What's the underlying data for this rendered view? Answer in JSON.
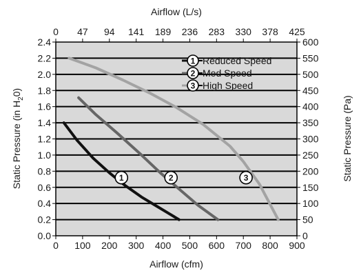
{
  "chart_data": {
    "type": "line",
    "xlabel_bottom": "Airflow (cfm)",
    "xlabel_top": "Airflow (L/s)",
    "ylabel_left_prefix": "Static Pressure (in H",
    "ylabel_left_sub": "2",
    "ylabel_left_suffix": "0)",
    "ylabel_right": "Static Pressure (Pa)",
    "xlim": [
      0,
      900
    ],
    "ylim": [
      0,
      2.4
    ],
    "x_ticks": [
      "0",
      "100",
      "200",
      "300",
      "400",
      "500",
      "600",
      "700",
      "800",
      "900"
    ],
    "y_ticks": [
      "0.0",
      "0.2",
      "0.4",
      "0.6",
      "0.8",
      "1.0",
      "1.2",
      "1.4",
      "1.6",
      "1.8",
      "2.0",
      "2.2",
      "2.4"
    ],
    "top_ticks": [
      "0",
      "47",
      "94",
      "141",
      "189",
      "236",
      "283",
      "330",
      "378",
      "425"
    ],
    "right_ticks": [
      "0",
      "50",
      "100",
      "150",
      "200",
      "250",
      "300",
      "350",
      "400",
      "450",
      "500",
      "550",
      "600"
    ],
    "grid": true,
    "legend_position": "top-right",
    "series": [
      {
        "name": "Reduced Speed",
        "marker": "1",
        "color": "#111111",
        "x": [
          30,
          80,
          140,
          200,
          260,
          320,
          380,
          420,
          460
        ],
        "y": [
          1.4,
          1.18,
          0.96,
          0.78,
          0.62,
          0.48,
          0.36,
          0.28,
          0.2
        ],
        "label_at": [
          245,
          0.72
        ]
      },
      {
        "name": "Med Speed",
        "marker": "2",
        "color": "#666666",
        "x": [
          85,
          150,
          230,
          320,
          390,
          460,
          530,
          605
        ],
        "y": [
          1.71,
          1.5,
          1.27,
          1.0,
          0.78,
          0.58,
          0.38,
          0.2
        ],
        "label_at": [
          430,
          0.72
        ]
      },
      {
        "name": "High Speed",
        "marker": "3",
        "color": "#a3a3a3",
        "x": [
          50,
          150,
          250,
          350,
          450,
          550,
          650,
          700,
          760,
          830
        ],
        "y": [
          2.2,
          2.08,
          1.93,
          1.77,
          1.59,
          1.38,
          1.11,
          0.92,
          0.64,
          0.2
        ],
        "label_at": [
          710,
          0.72
        ]
      }
    ]
  }
}
